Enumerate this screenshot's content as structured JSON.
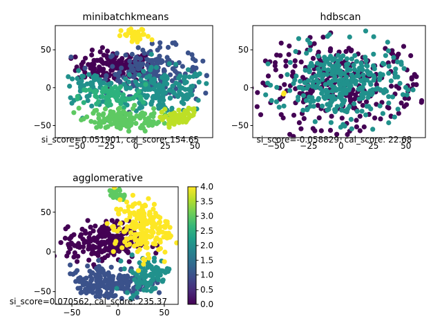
{
  "chart_data": [
    {
      "type": "scatter",
      "title": "minibatchkmeans",
      "xlim": [
        -68,
        65
      ],
      "ylim": [
        -66,
        82
      ],
      "xticks": [
        -50,
        -25,
        0,
        25,
        50
      ],
      "yticks": [
        -50,
        0,
        50
      ],
      "annotation": "si_score=0.051901, cal_score: 154.65",
      "clusters": [
        {
          "label": 0,
          "color": "#440154",
          "x": -18,
          "y": 28,
          "sx": 16,
          "sy": 10,
          "n": 150
        },
        {
          "label": 1,
          "color": "#3b528b",
          "x": 15,
          "y": 22,
          "sx": 20,
          "sy": 16,
          "n": 180
        },
        {
          "label": 2,
          "color": "#21918c",
          "x": 22,
          "y": -5,
          "sx": 20,
          "sy": 15,
          "n": 170
        },
        {
          "label": 3,
          "color": "#21918c",
          "x": -38,
          "y": 0,
          "sx": 12,
          "sy": 10,
          "n": 70
        },
        {
          "label": 4,
          "color": "#2db27d",
          "x": -20,
          "y": -12,
          "sx": 14,
          "sy": 8,
          "n": 70
        },
        {
          "label": 5,
          "color": "#5ec962",
          "x": -12,
          "y": -42,
          "sx": 17,
          "sy": 8,
          "n": 140
        },
        {
          "label": 6,
          "color": "#bddf26",
          "x": 38,
          "y": -42,
          "sx": 8,
          "sy": 7,
          "n": 80
        },
        {
          "label": 7,
          "color": "#fde725",
          "x": 0,
          "y": 68,
          "sx": 6,
          "sy": 5,
          "n": 35
        }
      ]
    },
    {
      "type": "scatter",
      "title": "hdbscan",
      "xlim": [
        -68,
        65
      ],
      "ylim": [
        -66,
        82
      ],
      "xticks": [
        -50,
        -25,
        0,
        25,
        50
      ],
      "yticks": [
        -50,
        0,
        50
      ],
      "annotation": "si_score=-0.058829, cal_score: 22.68",
      "clusters": [
        {
          "label": 0,
          "color": "#440154",
          "x": 0,
          "y": 5,
          "sx": 34,
          "sy": 28,
          "n": 280
        },
        {
          "label": 1,
          "color": "#21918c",
          "x": 0,
          "y": 5,
          "sx": 22,
          "sy": 24,
          "n": 320
        },
        {
          "label": 2,
          "color": "#fde725",
          "x": -45,
          "y": -10,
          "sx": 2,
          "sy": 2,
          "n": 2
        }
      ]
    },
    {
      "type": "scatter",
      "title": "agglomerative",
      "xlim": [
        -68,
        65
      ],
      "ylim": [
        -66,
        82
      ],
      "xticks": [
        -50,
        0,
        50
      ],
      "yticks": [
        -50,
        0,
        50
      ],
      "annotation": "si_score=0.070562, cal_score: 235.37",
      "colorbar": {
        "min": 0.0,
        "max": 4.0,
        "ticks": [
          "0.0",
          "0.5",
          "1.0",
          "1.5",
          "2.0",
          "2.5",
          "3.0",
          "3.5",
          "4.0"
        ]
      },
      "clusters": [
        {
          "label": 0,
          "color": "#440154",
          "x": -15,
          "y": 12,
          "sx": 20,
          "sy": 13,
          "n": 210
        },
        {
          "label": 1,
          "color": "#3b528b",
          "x": -10,
          "y": -38,
          "sx": 22,
          "sy": 11,
          "n": 200
        },
        {
          "label": 2,
          "color": "#21918c",
          "x": 32,
          "y": -30,
          "sx": 12,
          "sy": 12,
          "n": 90
        },
        {
          "label": 3,
          "color": "#5ec962",
          "x": 0,
          "y": 72,
          "sx": 5,
          "sy": 4,
          "n": 25
        },
        {
          "label": 4,
          "color": "#fde725",
          "x": 25,
          "y": 30,
          "sx": 15,
          "sy": 18,
          "n": 190
        }
      ]
    }
  ],
  "viridis": [
    "#440154",
    "#482878",
    "#3e4989",
    "#31688e",
    "#26828e",
    "#1f9e89",
    "#35b779",
    "#6ece58",
    "#b5de2b",
    "#fde725"
  ]
}
